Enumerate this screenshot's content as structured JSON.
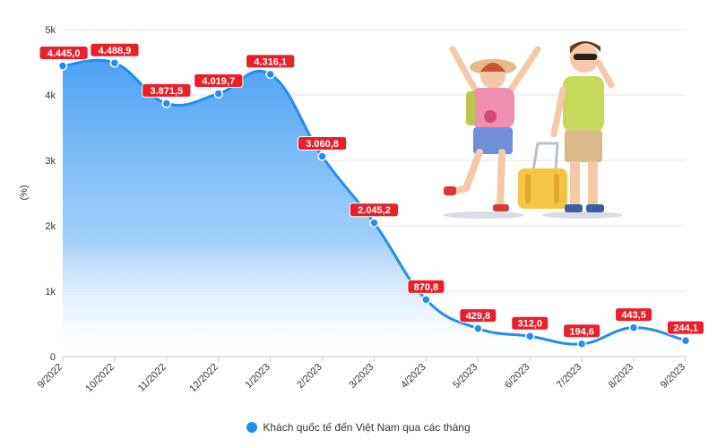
{
  "chart_data": {
    "type": "area",
    "title": "",
    "xlabel": "",
    "ylabel": "(%)",
    "categories": [
      "9/2022",
      "10/2022",
      "11/2022",
      "12/2022",
      "1/2023",
      "2/2023",
      "3/2023",
      "4/2023",
      "5/2023",
      "6/2023",
      "7/2023",
      "8/2023",
      "9/2023"
    ],
    "series": [
      {
        "name": "Khách quốc tế đến Việt Nam qua các tháng",
        "values": [
          4445.0,
          4488.9,
          3871.5,
          4019.7,
          4316.1,
          3060.8,
          2045.2,
          870.8,
          429.8,
          312.0,
          194.6,
          443.5,
          244.1
        ],
        "data_labels": [
          "4.445,0",
          "4.488,9",
          "3.871,5",
          "4.019,7",
          "4.316,1",
          "3.060,8",
          "2.045,2",
          "870,8",
          "429,8",
          "312,0",
          "194,6",
          "443,5",
          "244,1"
        ]
      }
    ],
    "ylim": [
      0,
      5000
    ],
    "yticks": [
      0,
      1000,
      2000,
      3000,
      4000,
      5000
    ],
    "ytick_labels": [
      "0",
      "1k",
      "2k",
      "3k",
      "4k",
      "5k"
    ],
    "grid": true,
    "legend_position": "bottom-center",
    "colors": {
      "line": "#1f8ef1",
      "area_top": "#5aa8f5",
      "label_bg": "#e8202a",
      "grid": "#e6e6e6"
    }
  },
  "legend": {
    "label": "Khách quốc tế đến Việt Nam qua các tháng"
  },
  "illustration": {
    "icon": "tourists-illustration-icon"
  }
}
